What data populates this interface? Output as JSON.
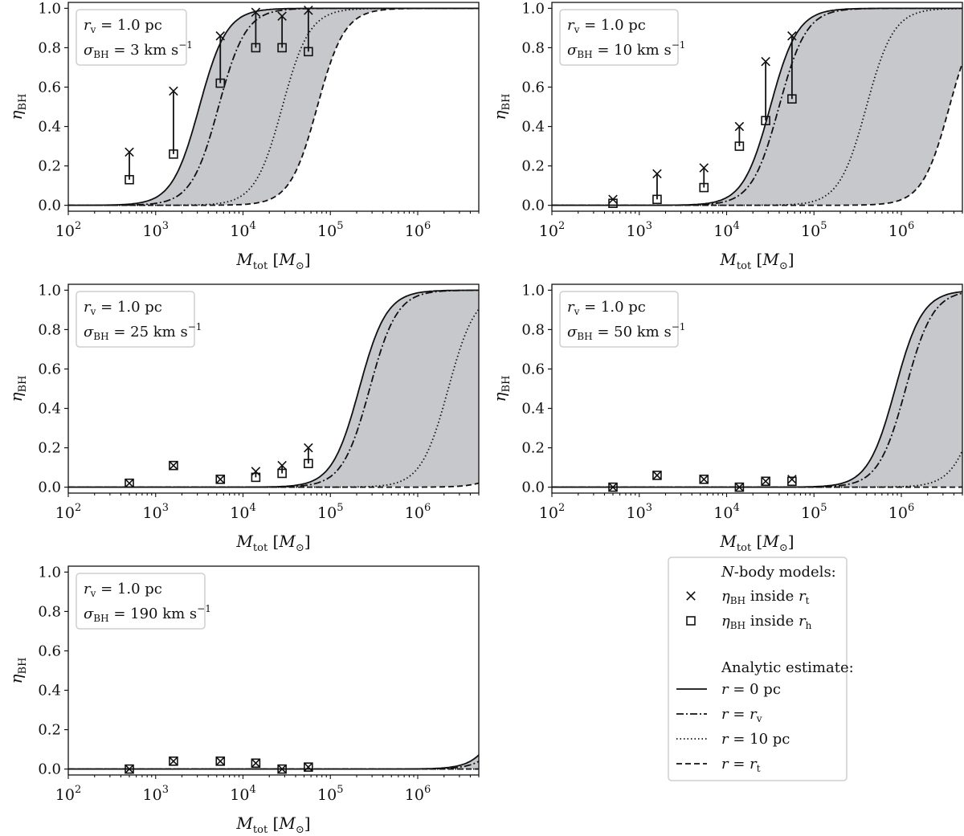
{
  "chart_data": {
    "type": "line",
    "figure_description_note": "",
    "x_axis": {
      "label": "M_tot [M_sun]",
      "scale": "log",
      "xlim": [
        100,
        5000000
      ],
      "tick_exponents": [
        2,
        3,
        4,
        5,
        6
      ]
    },
    "y_axis": {
      "label": "eta_BH",
      "ylim": [
        -0.03,
        1.03
      ],
      "ticks": [
        "0.0",
        "0.2",
        "0.4",
        "0.6",
        "0.8",
        "1.0"
      ]
    },
    "panels": [
      {
        "id": "sigma-3",
        "annotation": {
          "rv_text": "= 1.0 pc",
          "sigma_value": "3",
          "sigma_text": "= 3 km s"
        },
        "curve_centers_log10": {
          "r0": 3.5,
          "rv": 3.72,
          "r10pc": 4.45,
          "rt": 4.85
        },
        "curve_width_dex": 0.36,
        "nbody_x": [
          500,
          1600,
          5500,
          14000,
          28000,
          56000
        ],
        "eta_inside_rt": [
          0.27,
          0.58,
          0.86,
          0.98,
          0.96,
          0.99
        ],
        "eta_inside_rh": [
          0.13,
          0.26,
          0.62,
          0.8,
          0.8,
          0.78
        ]
      },
      {
        "id": "sigma-10",
        "annotation": {
          "rv_text": "= 1.0 pc",
          "sigma_value": "10",
          "sigma_text": "= 10 km s"
        },
        "curve_centers_log10": {
          "r0": 4.5,
          "rv": 4.6,
          "r10pc": 5.6,
          "rt": 6.55
        },
        "curve_width_dex": 0.36,
        "nbody_x": [
          500,
          1600,
          5500,
          14000,
          28000,
          56000
        ],
        "eta_inside_rt": [
          0.03,
          0.16,
          0.19,
          0.4,
          0.73,
          0.86
        ],
        "eta_inside_rh": [
          0.01,
          0.03,
          0.09,
          0.3,
          0.43,
          0.54
        ]
      },
      {
        "id": "sigma-25",
        "annotation": {
          "rv_text": "= 1.0 pc",
          "sigma_value": "25",
          "sigma_text": "= 25 km s"
        },
        "curve_centers_log10": {
          "r0": 5.33,
          "rv": 5.45,
          "r10pc": 6.35,
          "rt": 7.3
        },
        "curve_width_dex": 0.36,
        "nbody_x": [
          500,
          1600,
          5500,
          14000,
          28000,
          56000
        ],
        "eta_inside_rt": [
          0.02,
          0.11,
          0.04,
          0.08,
          0.11,
          0.2
        ],
        "eta_inside_rh": [
          0.02,
          0.11,
          0.04,
          0.05,
          0.07,
          0.12
        ]
      },
      {
        "id": "sigma-50",
        "annotation": {
          "rv_text": "= 1.0 pc",
          "sigma_value": "50",
          "sigma_text": "= 50 km s"
        },
        "curve_centers_log10": {
          "r0": 5.93,
          "rv": 6.05,
          "r10pc": 6.93,
          "rt": 7.9
        },
        "curve_width_dex": 0.36,
        "nbody_x": [
          500,
          1600,
          5500,
          14000,
          28000,
          56000
        ],
        "eta_inside_rt": [
          0.0,
          0.06,
          0.04,
          0.0,
          0.03,
          0.04
        ],
        "eta_inside_rh": [
          0.0,
          0.06,
          0.04,
          0.0,
          0.03,
          0.03
        ]
      },
      {
        "id": "sigma-190",
        "annotation": {
          "rv_text": "= 1.0 pc",
          "sigma_value": "190",
          "sigma_text": "= 190 km s"
        },
        "curve_centers_log10": {
          "r0": 7.1,
          "rv": 7.2,
          "r10pc": 8.0,
          "rt": 9.0
        },
        "curve_width_dex": 0.36,
        "nbody_x": [
          500,
          1600,
          5500,
          14000,
          28000,
          56000
        ],
        "eta_inside_rt": [
          0.0,
          0.04,
          0.04,
          0.03,
          0.0,
          0.01
        ],
        "eta_inside_rh": [
          0.0,
          0.04,
          0.04,
          0.03,
          0.0,
          0.01
        ]
      }
    ],
    "legend": {
      "placement": "bottom-right",
      "nbody_header": "-body models:",
      "nbody_header_italic": "N",
      "entries": [
        {
          "marker": "cross",
          "text": "inside",
          "eta_text": "η",
          "sub": "BH",
          "r_text": "r",
          "r_sub": "t"
        },
        {
          "marker": "square",
          "text": "inside",
          "eta_text": "η",
          "sub": "BH",
          "r_text": "r",
          "r_sub": "h"
        }
      ],
      "analytic_header": "Analytic estimate:",
      "lines": [
        {
          "style": "solid",
          "label_pre": "r",
          "label_post": "= 0 pc"
        },
        {
          "style": "dashdot",
          "label_pre": "r",
          "label_post": "= r",
          "label_sub": "v"
        },
        {
          "style": "dotted",
          "label_pre": "r",
          "label_post": "= 10 pc"
        },
        {
          "style": "dashed",
          "label_pre": "r",
          "label_post": "= r",
          "label_sub": "t"
        }
      ]
    },
    "colors": {
      "shade": "#c6c8cb",
      "line": "#111111",
      "axis": "#111111"
    }
  }
}
